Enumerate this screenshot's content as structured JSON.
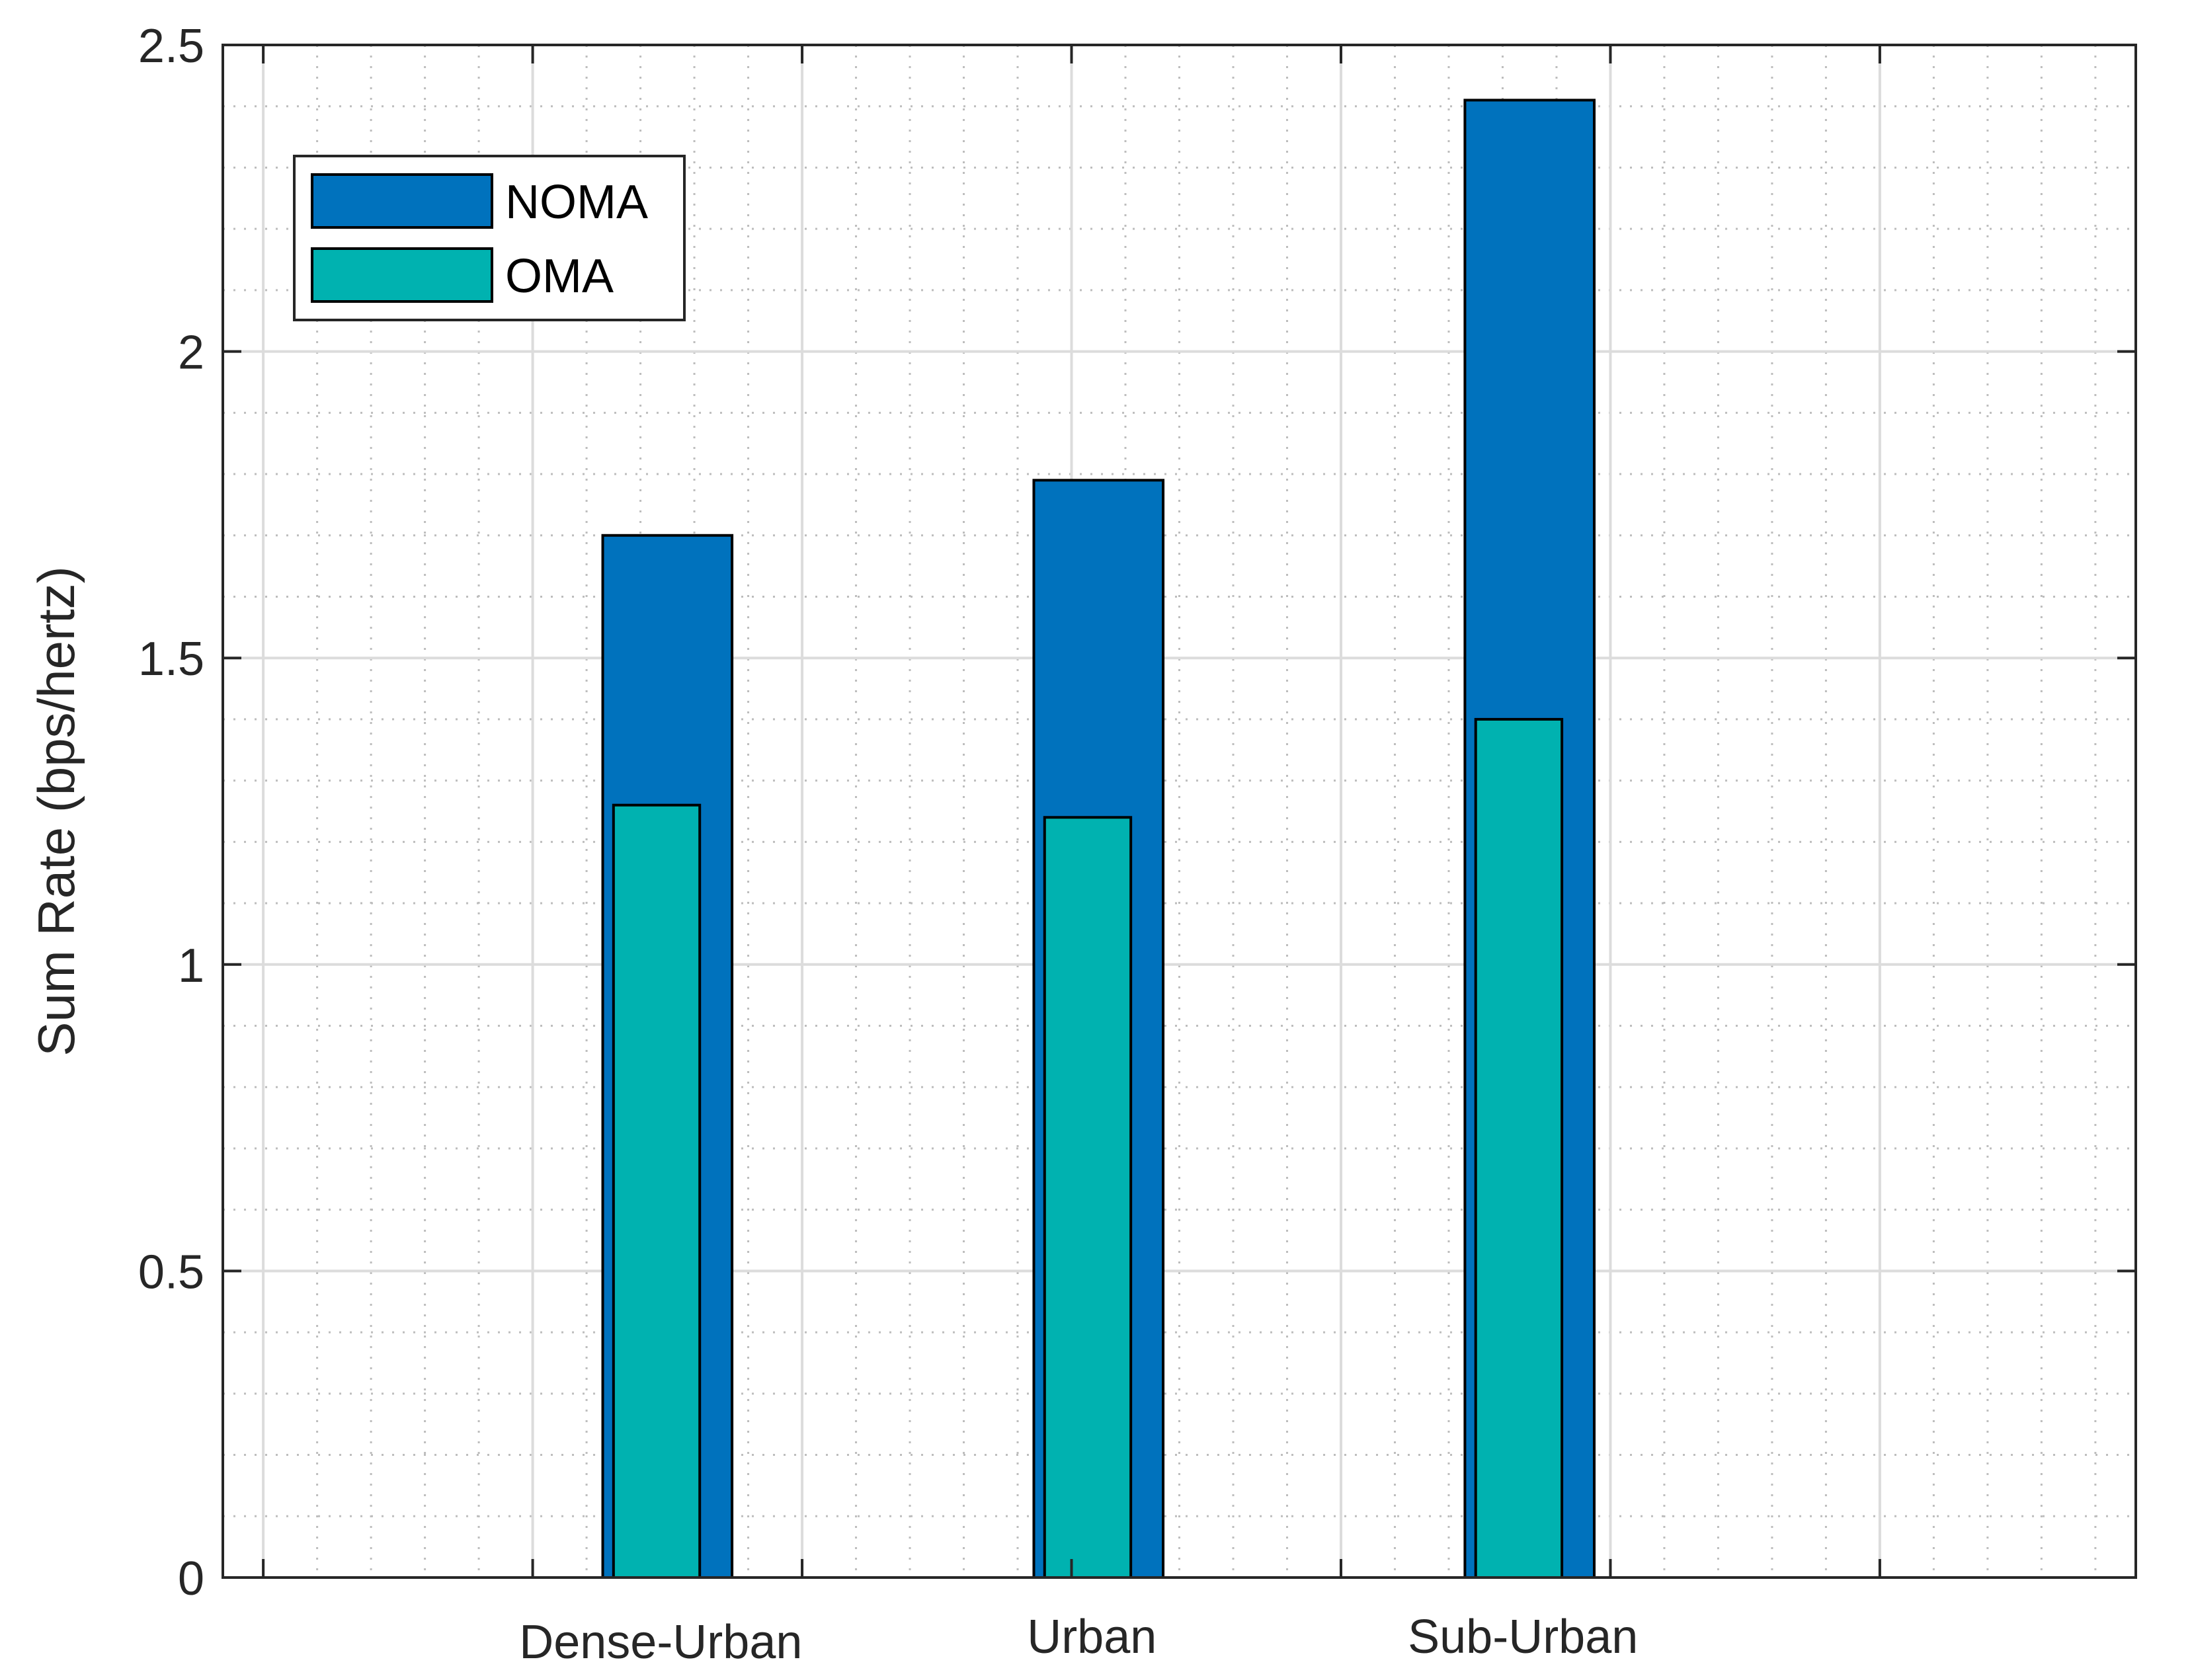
{
  "chart_data": {
    "type": "bar",
    "title": "",
    "xlabel": "",
    "ylabel": "Sum Rate (bps/hertz)",
    "ylim": [
      0,
      2.5
    ],
    "yticks": [
      0,
      0.5,
      1,
      1.5,
      2,
      2.5
    ],
    "ytick_labels": [
      "0",
      "0.5",
      "1",
      "1.5",
      "2",
      "2.5"
    ],
    "categories": [
      "Dense-Urban",
      "Urban",
      "Sub-Urban"
    ],
    "series": [
      {
        "name": "NOMA",
        "values": [
          1.7,
          1.79,
          2.41
        ],
        "color": "#0072bd"
      },
      {
        "name": "OMA",
        "values": [
          1.26,
          1.24,
          1.4
        ],
        "color": "#00b2b0"
      }
    ],
    "grid": true,
    "minor_grid": true,
    "legend_position": "top-left"
  }
}
